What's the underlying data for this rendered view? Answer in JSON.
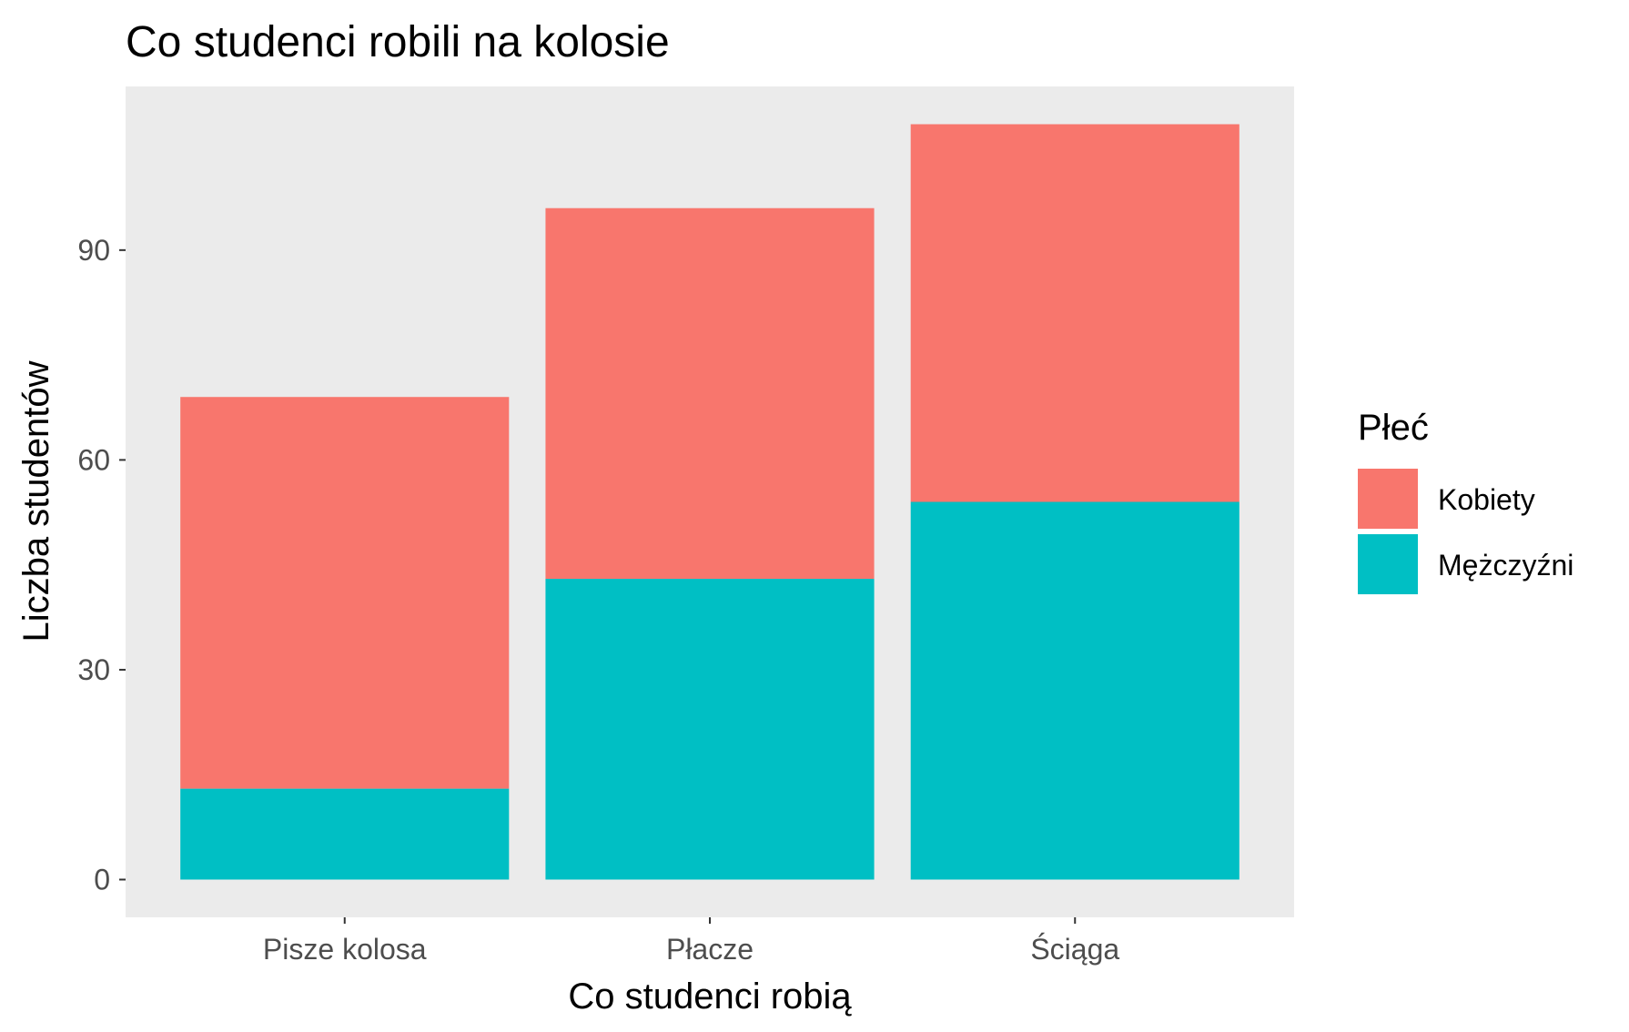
{
  "chart_data": {
    "type": "bar",
    "stacked": true,
    "title": "Co studenci robili na kolosie",
    "xlabel": "Co studenci robią",
    "ylabel": "Liczba studentów",
    "categories": [
      "Pisze kolosa",
      "Płacze",
      "Ściąga"
    ],
    "series": [
      {
        "name": "Mężczyźni",
        "color": "#00BFC4",
        "values": [
          13,
          43,
          54
        ]
      },
      {
        "name": "Kobiety",
        "color": "#F8766D",
        "values": [
          56,
          53,
          54
        ]
      }
    ],
    "ylim": [
      -5.4,
      113.4
    ],
    "yticks": [
      0,
      30,
      60,
      90
    ],
    "grid": false,
    "panel_background": "#EBEBEB",
    "legend": {
      "title": "Płeć",
      "placement": "right",
      "items": [
        {
          "label": "Kobiety",
          "color": "#F8766D"
        },
        {
          "label": "Mężczyźni",
          "color": "#00BFC4"
        }
      ]
    }
  }
}
